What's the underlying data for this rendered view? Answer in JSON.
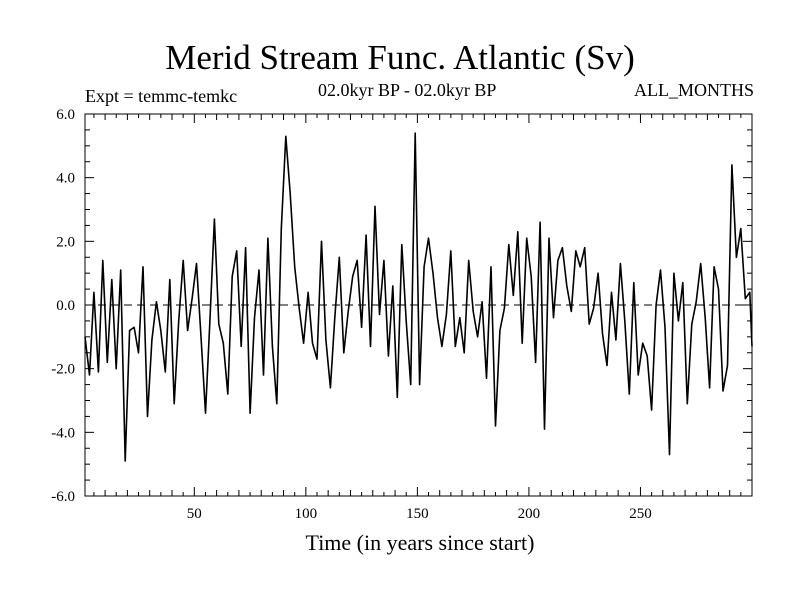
{
  "chart_data": {
    "type": "line",
    "title": "Merid Stream Func. Atlantic (Sv)",
    "expt_label": "Expt = temmc-temkc",
    "period_label": "02.0kyr BP - 02.0kyr BP",
    "months_label": "ALL_MONTHS",
    "xlabel": "Time (in years since start)",
    "ylabel": "",
    "xlim": [
      1,
      300
    ],
    "ylim": [
      -6,
      6
    ],
    "xticks": [
      50,
      100,
      150,
      200,
      250
    ],
    "yticks": [
      -6,
      -4,
      -2,
      0,
      2,
      4,
      6
    ],
    "ytick_labels": [
      "-6.0",
      "-4.0",
      "-2.0",
      "0.0",
      "2.0",
      "4.0",
      "6.0"
    ],
    "reference_line": 0,
    "series": [
      {
        "name": "Merid Stream Func. Atlantic",
        "color": "#000000",
        "x": [
          1,
          3,
          5,
          7,
          9,
          11,
          13,
          15,
          17,
          19,
          21,
          23,
          25,
          27,
          29,
          31,
          33,
          35,
          37,
          39,
          41,
          43,
          45,
          47,
          49,
          51,
          53,
          55,
          57,
          59,
          61,
          63,
          65,
          67,
          69,
          71,
          73,
          75,
          77,
          79,
          81,
          83,
          85,
          87,
          89,
          91,
          93,
          95,
          97,
          99,
          101,
          103,
          105,
          107,
          109,
          111,
          113,
          115,
          117,
          119,
          121,
          123,
          125,
          127,
          129,
          131,
          133,
          135,
          137,
          139,
          141,
          143,
          145,
          147,
          149,
          151,
          153,
          155,
          157,
          159,
          161,
          163,
          165,
          167,
          169,
          171,
          173,
          175,
          177,
          179,
          181,
          183,
          185,
          187,
          189,
          191,
          193,
          195,
          197,
          199,
          201,
          203,
          205,
          207,
          209,
          211,
          213,
          215,
          217,
          219,
          221,
          223,
          225,
          227,
          229,
          231,
          233,
          235,
          237,
          239,
          241,
          243,
          245,
          247,
          249,
          251,
          253,
          255,
          257,
          259,
          261,
          263,
          265,
          267,
          269,
          271,
          273,
          275,
          277,
          279,
          281,
          283,
          285,
          287,
          289,
          291,
          293,
          295,
          297,
          299,
          300
        ],
        "y": [
          -1.0,
          -2.2,
          0.4,
          -2.1,
          1.4,
          -1.8,
          0.8,
          -2.0,
          1.1,
          -4.9,
          -0.8,
          -0.7,
          -1.5,
          1.2,
          -3.5,
          -1.1,
          0.1,
          -0.8,
          -2.1,
          0.8,
          -3.1,
          -0.5,
          1.4,
          -0.8,
          0.2,
          1.3,
          -1.0,
          -3.4,
          -0.5,
          2.7,
          -0.6,
          -1.2,
          -2.8,
          0.9,
          1.7,
          -1.3,
          1.8,
          -3.4,
          -0.4,
          1.1,
          -2.2,
          2.1,
          -1.3,
          -3.1,
          2.4,
          5.3,
          3.5,
          1.2,
          -0.1,
          -1.2,
          0.4,
          -1.2,
          -1.7,
          2.0,
          -1.1,
          -2.6,
          -0.4,
          1.5,
          -1.5,
          -0.2,
          0.9,
          1.4,
          -0.7,
          2.2,
          -1.3,
          3.1,
          -0.3,
          1.4,
          -1.6,
          0.6,
          -2.9,
          1.9,
          -0.5,
          -2.5,
          5.4,
          -2.5,
          1.2,
          2.1,
          1.0,
          -0.4,
          -1.3,
          -0.3,
          1.7,
          -1.3,
          -0.4,
          -1.5,
          1.4,
          -0.2,
          -1.0,
          0.1,
          -2.3,
          1.2,
          -3.8,
          -0.8,
          -0.1,
          1.9,
          0.3,
          2.3,
          -1.2,
          2.1,
          0.9,
          -1.8,
          2.6,
          -3.9,
          2.1,
          -0.4,
          1.4,
          1.8,
          0.6,
          -0.2,
          1.7,
          1.2,
          1.8,
          -0.6,
          -0.1,
          1.0,
          -0.9,
          -1.9,
          0.4,
          -1.1,
          1.3,
          -0.5,
          -2.8,
          0.7,
          -2.2,
          -1.2,
          -1.6,
          -3.3,
          0.0,
          1.1,
          -0.7,
          -4.7,
          1.0,
          -0.5,
          0.7,
          -3.1,
          -0.6,
          0.1,
          1.3,
          -0.4,
          -2.6,
          1.2,
          0.5,
          -2.7,
          -1.9,
          4.4,
          1.5,
          2.4,
          0.2,
          0.4,
          -1.3
        ]
      }
    ]
  }
}
